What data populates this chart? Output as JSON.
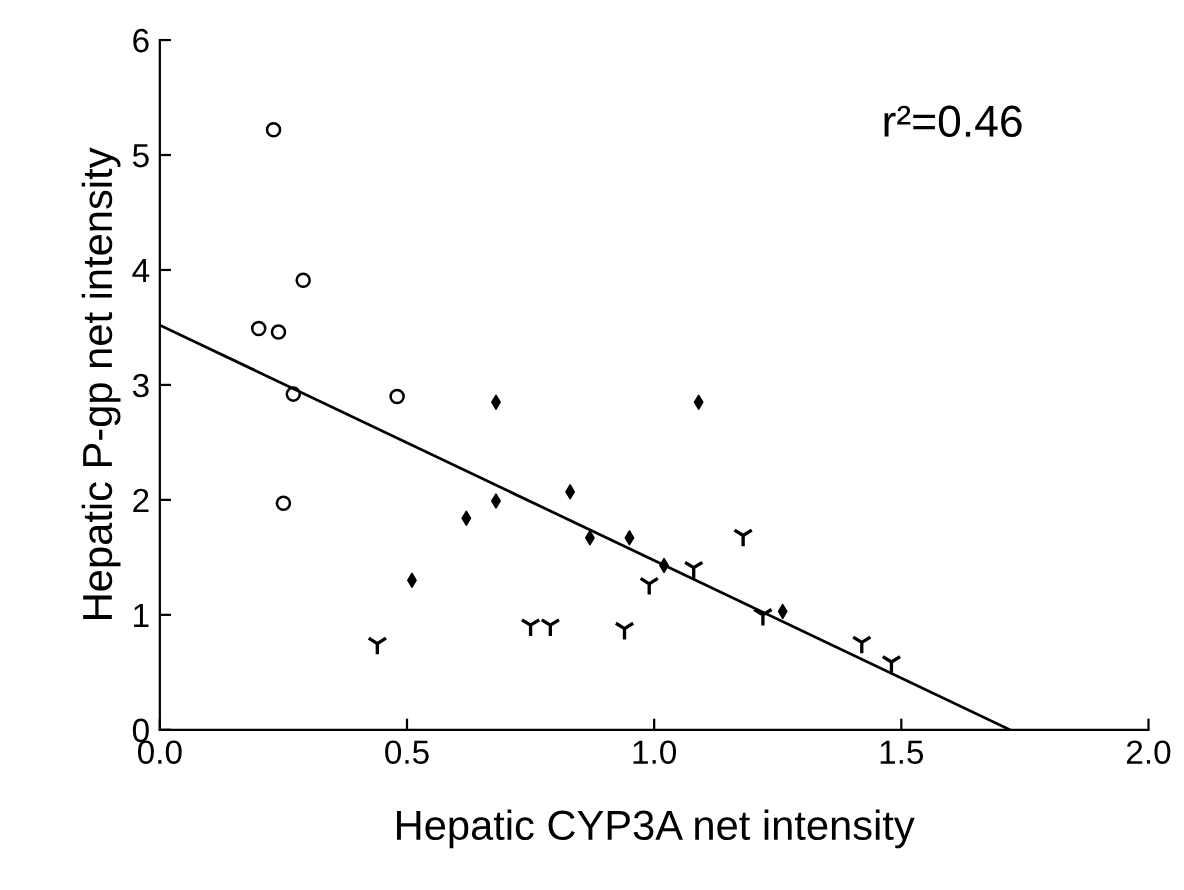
{
  "chart_data": {
    "type": "scatter",
    "xlabel": "Hepatic CYP3A net intensity",
    "ylabel": "Hepatic P-gp net intensity",
    "annotations": [
      "r²=0.46"
    ],
    "xlim": [
      0,
      2.0
    ],
    "ylim": [
      0,
      6
    ],
    "xticks": [
      {
        "value": 0,
        "label": "0.0"
      },
      0.5,
      {
        "value": 1,
        "label": "1.0"
      },
      1.5,
      {
        "value": 2,
        "label": "2.0"
      }
    ],
    "yticks": [
      0,
      1,
      2,
      3,
      4,
      5,
      6
    ],
    "grid": false,
    "legend": false,
    "series": [
      {
        "marker": "circle",
        "color": "#000000",
        "x": [
          0.23,
          0.29,
          0.2,
          0.24,
          0.27,
          0.48,
          0.25
        ],
        "values": [
          5.22,
          3.91,
          3.49,
          3.46,
          2.92,
          2.9,
          1.97
        ]
      },
      {
        "marker": "diamond",
        "color": "#000000",
        "x": [
          0.68,
          0.68,
          0.62,
          0.51,
          0.83,
          0.87,
          0.95,
          1.09,
          1.02,
          1.26
        ],
        "values": [
          2.85,
          1.99,
          1.84,
          1.3,
          2.07,
          1.67,
          1.67,
          2.85,
          1.43,
          1.03
        ]
      },
      {
        "marker": "cross",
        "color": "#000000",
        "x": [
          0.44,
          0.75,
          0.79,
          0.94,
          0.99,
          1.08,
          1.18,
          1.22,
          1.42,
          1.48
        ],
        "values": [
          0.75,
          0.91,
          0.91,
          0.88,
          1.27,
          1.41,
          1.69,
          1.0,
          0.76,
          0.59
        ]
      },
      {
        "type": "line",
        "color": "#000000",
        "line_style": "solid",
        "marker": "none",
        "x": [
          0,
          1.72
        ],
        "values": [
          3.52,
          0
        ]
      }
    ]
  }
}
